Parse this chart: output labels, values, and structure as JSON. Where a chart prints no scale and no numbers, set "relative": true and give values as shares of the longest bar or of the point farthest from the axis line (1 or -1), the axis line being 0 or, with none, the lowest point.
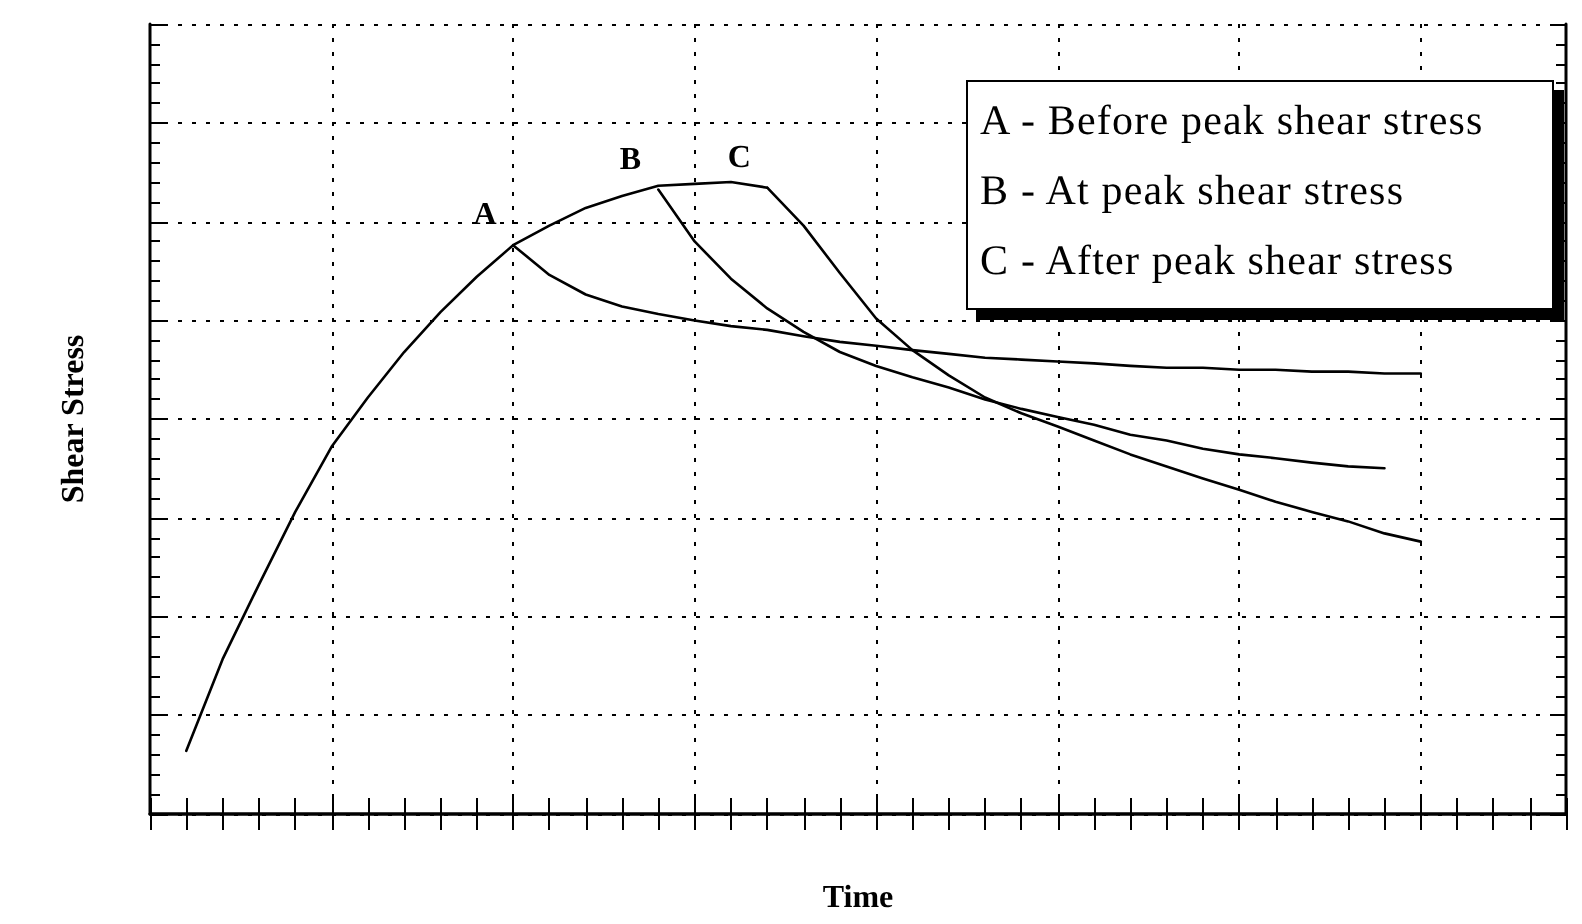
{
  "chart_data": {
    "type": "line",
    "xlabel": "Time",
    "ylabel": "Shear Stress",
    "relative": true,
    "grid": true,
    "legend": false,
    "marker": "none",
    "line_style": "solid",
    "categories": [
      null,
      null,
      null,
      null,
      null,
      null,
      null,
      null,
      null,
      null,
      null,
      null,
      null,
      null,
      null,
      null,
      null,
      null,
      null,
      null,
      null,
      null,
      null,
      null,
      null,
      null,
      null,
      null,
      null,
      null,
      null,
      null,
      null,
      null,
      null,
      null,
      null,
      null,
      null,
      null
    ],
    "series": [
      {
        "color": "#000000",
        "values": [
          null,
          0.1,
          0.245,
          0.363,
          0.478,
          0.581,
          0.659,
          0.731,
          0.794,
          0.85,
          0.9,
          0.931,
          0.959,
          0.978,
          0.994,
          0.997,
          1.0,
          0.991,
          null,
          null,
          null,
          null,
          null,
          null,
          null,
          null,
          null,
          null,
          null,
          null,
          null,
          null,
          null,
          null,
          null,
          null,
          null,
          null,
          null,
          null
        ]
      },
      {
        "name": "A",
        "color": "#000000",
        "values": [
          null,
          null,
          null,
          null,
          null,
          null,
          null,
          null,
          null,
          null,
          0.9,
          0.853,
          0.822,
          0.803,
          0.791,
          0.781,
          0.772,
          0.766,
          0.756,
          0.747,
          0.741,
          0.734,
          0.728,
          0.722,
          0.719,
          0.716,
          0.713,
          0.709,
          0.706,
          0.706,
          0.703,
          0.703,
          0.7,
          0.7,
          0.697,
          0.697,
          null,
          null,
          null,
          null
        ]
      },
      {
        "name": "B",
        "color": "#000000",
        "values": [
          null,
          null,
          null,
          null,
          null,
          null,
          null,
          null,
          null,
          null,
          null,
          null,
          null,
          null,
          0.988,
          0.906,
          0.847,
          0.8,
          0.763,
          0.731,
          0.709,
          0.691,
          0.675,
          0.656,
          0.641,
          0.628,
          0.616,
          0.6,
          0.591,
          0.578,
          0.569,
          0.563,
          0.556,
          0.55,
          0.547,
          null,
          null,
          null,
          null,
          null
        ]
      },
      {
        "name": "C",
        "color": "#000000",
        "values": [
          null,
          null,
          null,
          null,
          null,
          null,
          null,
          null,
          null,
          null,
          null,
          null,
          null,
          null,
          null,
          null,
          null,
          0.991,
          0.931,
          0.856,
          0.784,
          0.734,
          0.694,
          0.659,
          0.634,
          0.613,
          0.591,
          0.569,
          0.55,
          0.531,
          0.513,
          0.494,
          0.478,
          0.463,
          0.444,
          0.431,
          null,
          null,
          null,
          null
        ]
      }
    ],
    "annotations": [
      "A - Before peak shear stress",
      "B - At peak shear stress",
      "C - After peak shear stress"
    ]
  }
}
